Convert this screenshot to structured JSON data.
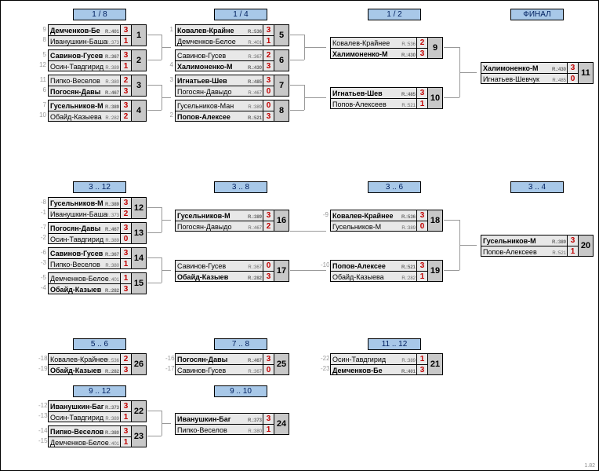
{
  "version": "1.82",
  "labels": {
    "r18": "1 / 8",
    "r14": "1 / 4",
    "r12": "1 / 2",
    "final": "ФИНАЛ",
    "r312": "3 .. 12",
    "r38": "3 .. 8",
    "r36": "3 .. 6",
    "r34": "3 .. 4",
    "r56": "5 .. 6",
    "r78": "7 .. 8",
    "r1112": "11 .. 12",
    "r912": "9 .. 12",
    "r910": "9 .. 10"
  },
  "m": {
    "1": {
      "a": {
        "s": "9",
        "n": "Демченков-Бе",
        "r": "R.:401",
        "sc": "3",
        "w": 1
      },
      "b": {
        "s": "8",
        "n": "Иванушкин-Баша",
        "r": "R.:373",
        "sc": "1"
      },
      "num": "1"
    },
    "2": {
      "a": {
        "s": "5",
        "n": "Савинов-Гусев",
        "r": "R.:367",
        "sc": "3",
        "w": 1
      },
      "b": {
        "s": "12",
        "n": "Осин-Тавдгирид",
        "r": "R.:389",
        "sc": "1"
      },
      "num": "2"
    },
    "3": {
      "a": {
        "s": "11",
        "n": "Пипко-Веселов",
        "r": "R.:380",
        "sc": "2"
      },
      "b": {
        "s": "6",
        "n": "Погосян-Давы",
        "r": "R.:467",
        "sc": "3",
        "w": 1
      },
      "num": "3"
    },
    "4": {
      "a": {
        "s": "7",
        "n": "Гусельников-М",
        "r": "R.:389",
        "sc": "3",
        "w": 1
      },
      "b": {
        "s": "10",
        "n": "Обайд-Казыева",
        "r": "R.:282",
        "sc": "2"
      },
      "num": "4"
    },
    "5": {
      "a": {
        "s": "1",
        "n": "Ковалев-Крайне",
        "r": "R.:536",
        "sc": "3",
        "w": 1
      },
      "b": {
        "s": "",
        "n": "Демченков-Белое",
        "r": "R.:401",
        "sc": "1"
      },
      "num": "5"
    },
    "6": {
      "a": {
        "s": "",
        "n": "Савинов-Гусев",
        "r": "R.:367",
        "sc": "2"
      },
      "b": {
        "s": "4",
        "n": "Халимоненко-М",
        "r": "R.:430",
        "sc": "3",
        "w": 1
      },
      "num": "6"
    },
    "7": {
      "a": {
        "s": "3",
        "n": "Игнатьев-Шев",
        "r": "R.:485",
        "sc": "3",
        "w": 1
      },
      "b": {
        "s": "",
        "n": "Погосян-Давыдо",
        "r": "R.:467",
        "sc": "0"
      },
      "num": "7"
    },
    "8": {
      "a": {
        "s": "",
        "n": "Гусельников-Ман",
        "r": "R.:389",
        "sc": "0"
      },
      "b": {
        "s": "2",
        "n": "Попов-Алексее",
        "r": "R.:521",
        "sc": "3",
        "w": 1
      },
      "num": "8"
    },
    "9": {
      "a": {
        "n": "Ковалев-Крайнее",
        "r": "R.:536",
        "sc": "2"
      },
      "b": {
        "n": "Халимоненко-М",
        "r": "R.:430",
        "sc": "3",
        "w": 1
      },
      "num": "9"
    },
    "10": {
      "a": {
        "n": "Игнатьев-Шев",
        "r": "R.:485",
        "sc": "3",
        "w": 1
      },
      "b": {
        "n": "Попов-Алексеев",
        "r": "R.:521",
        "sc": "1"
      },
      "num": "10"
    },
    "11": {
      "a": {
        "n": "Халимоненко-М",
        "r": "R.:430",
        "sc": "3",
        "w": 1
      },
      "b": {
        "n": "Игнатьев-Шевчук",
        "r": "R.:485",
        "sc": "0"
      },
      "num": "11"
    },
    "12": {
      "a": {
        "s": "-8",
        "n": "Гусельников-М",
        "r": "R.:389",
        "sc": "3",
        "w": 1
      },
      "b": {
        "s": "-1",
        "n": "Иванушкин-Баша",
        "r": "R.:373",
        "sc": "2"
      },
      "num": "12"
    },
    "13": {
      "a": {
        "s": "-7",
        "n": "Погосян-Давы",
        "r": "R.:467",
        "sc": "3",
        "w": 1
      },
      "b": {
        "s": "-2",
        "n": "Осин-Тавдгирид",
        "r": "R.:389",
        "sc": "0"
      },
      "num": "13"
    },
    "14": {
      "a": {
        "s": "-6",
        "n": "Савинов-Гусев",
        "r": "R.:367",
        "sc": "3",
        "w": 1
      },
      "b": {
        "s": "-3",
        "n": "Пипко-Веселов",
        "r": "R.:380",
        "sc": "1"
      },
      "num": "14"
    },
    "15": {
      "a": {
        "s": "-5",
        "n": "Демченков-Белое",
        "r": "R.:401",
        "sc": "1"
      },
      "b": {
        "s": "-4",
        "n": "Обайд-Казыев",
        "r": "R.:282",
        "sc": "3",
        "w": 1
      },
      "num": "15"
    },
    "16": {
      "a": {
        "n": "Гусельников-М",
        "r": "R.:389",
        "sc": "3",
        "w": 1
      },
      "b": {
        "n": "Погосян-Давыдо",
        "r": "R.:467",
        "sc": "2"
      },
      "num": "16"
    },
    "17": {
      "a": {
        "n": "Савинов-Гусев",
        "r": "R.:367",
        "sc": "0"
      },
      "b": {
        "n": "Обайд-Казыев",
        "r": "R.:282",
        "sc": "3",
        "w": 1
      },
      "num": "17"
    },
    "18": {
      "a": {
        "s": "-9",
        "n": "Ковалев-Крайнее",
        "r": "R.:536",
        "sc": "3",
        "w": 1
      },
      "b": {
        "n": "Гусельников-М",
        "r": "R.:389",
        "sc": "0"
      },
      "num": "18"
    },
    "19": {
      "a": {
        "s": "-10",
        "n": "Попов-Алексее",
        "r": "R.:521",
        "sc": "3",
        "w": 1
      },
      "b": {
        "n": "Обайд-Казыева",
        "r": "R.:282",
        "sc": "1"
      },
      "num": "19"
    },
    "20": {
      "a": {
        "n": "Гусельников-М",
        "r": "R.:389",
        "sc": "3",
        "w": 1
      },
      "b": {
        "n": "Попов-Алексеев",
        "r": "R.:521",
        "sc": "1"
      },
      "num": "20"
    },
    "21": {
      "a": {
        "s": "-22",
        "n": "Осин-Тавдгирид",
        "r": "R.:389",
        "sc": "1"
      },
      "b": {
        "s": "-23",
        "n": "Демченков-Бе",
        "r": "R.:401",
        "sc": "3",
        "w": 1
      },
      "num": "21"
    },
    "22": {
      "a": {
        "s": "-12",
        "n": "Иванушкин-Баг",
        "r": "R.:373",
        "sc": "3",
        "w": 1
      },
      "b": {
        "s": "-13",
        "n": "Осин-Тавдгирид",
        "r": "R.:389",
        "sc": "1"
      },
      "num": "22"
    },
    "23": {
      "a": {
        "s": "-14",
        "n": "Пипко-Веселов",
        "r": "R.:380",
        "sc": "3",
        "w": 1
      },
      "b": {
        "s": "-15",
        "n": "Демченков-Белое",
        "r": "R.:401",
        "sc": "1"
      },
      "num": "23"
    },
    "24": {
      "a": {
        "n": "Иванушкин-Баг",
        "r": "R.:373",
        "sc": "3",
        "w": 1
      },
      "b": {
        "n": "Пипко-Веселов",
        "r": "R.:380",
        "sc": "1"
      },
      "num": "24"
    },
    "25": {
      "a": {
        "s": "-16",
        "n": "Погосян-Давы",
        "r": "R.:467",
        "sc": "3",
        "w": 1
      },
      "b": {
        "s": "-17",
        "n": "Савинов-Гусев",
        "r": "R.:367",
        "sc": "0"
      },
      "num": "25"
    },
    "26": {
      "a": {
        "s": "-18",
        "n": "Ковалев-Крайнее",
        "r": "R.:536",
        "sc": "2"
      },
      "b": {
        "s": "-19",
        "n": "Обайд-Казыев",
        "r": "R.:282",
        "sc": "3",
        "w": 1
      },
      "num": "26"
    }
  }
}
